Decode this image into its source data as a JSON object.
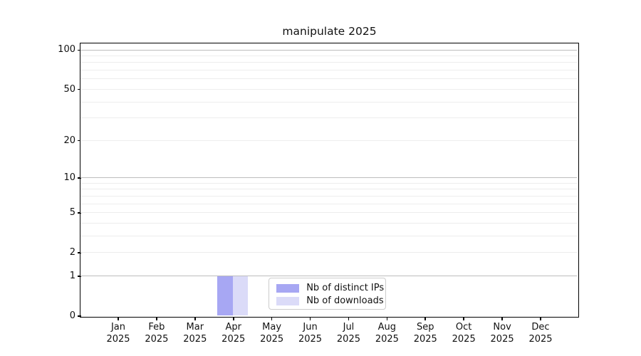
{
  "chart_data": {
    "type": "bar",
    "title": "manipulate 2025",
    "categories": [
      "Jan 2025",
      "Feb 2025",
      "Mar 2025",
      "Apr 2025",
      "May 2025",
      "Jun 2025",
      "Jul 2025",
      "Aug 2025",
      "Sep 2025",
      "Oct 2025",
      "Nov 2025",
      "Dec 2025"
    ],
    "series": [
      {
        "name": "Nb of distinct IPs",
        "color": "#a7a7f3",
        "values": [
          0,
          0,
          0,
          1,
          0,
          0,
          0,
          0,
          0,
          0,
          0,
          0
        ]
      },
      {
        "name": "Nb of downloads",
        "color": "#dbdbf8",
        "values": [
          0,
          0,
          0,
          1,
          0,
          0,
          0,
          0,
          0,
          0,
          0,
          0
        ]
      }
    ],
    "yscale": "log1p",
    "ylim": [
      0,
      111
    ],
    "y_ticks": [
      {
        "label": "0",
        "value": 0
      },
      {
        "label": "1",
        "value": 1
      },
      {
        "label": "2",
        "value": 2
      },
      {
        "label": "5",
        "value": 5
      },
      {
        "label": "10",
        "value": 10
      },
      {
        "label": "20",
        "value": 20
      },
      {
        "label": "50",
        "value": 50
      },
      {
        "label": "100",
        "value": 100
      }
    ],
    "y_major_gridlines": [
      1,
      10,
      100
    ],
    "y_minor_gridlines": [
      2,
      3,
      4,
      5,
      6,
      7,
      8,
      9,
      20,
      30,
      40,
      50,
      60,
      70,
      80,
      90
    ],
    "grid": true,
    "legend_position": "lower center",
    "colors": {
      "major_grid": "#bdbdbd",
      "minor_grid": "#ededed",
      "axis": "#000000",
      "text": "#111111"
    }
  }
}
